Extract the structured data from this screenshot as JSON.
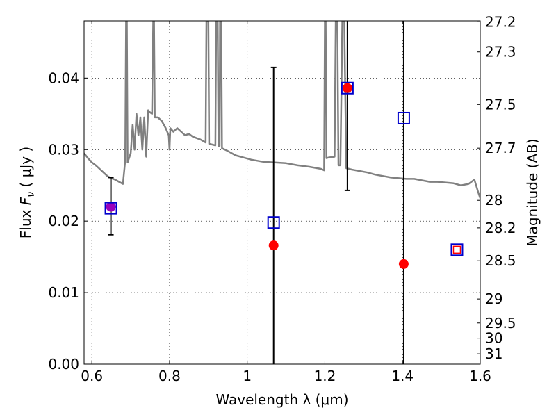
{
  "chart_data": {
    "type": "scatter",
    "xlabel": "Wavelength  λ (μm)",
    "ylabel": "Flux  F_ν  ( μJy )",
    "ylabel_parts": {
      "pre": "Flux  ",
      "var": "F",
      "sub": "ν",
      "post": "  ( μJy )"
    },
    "y2label": "Magnitude (AB)",
    "xlim": [
      0.58,
      1.6
    ],
    "ylim": [
      0.0,
      0.048
    ],
    "x_ticks": [
      {
        "value": 0.6,
        "label": "0.6"
      },
      {
        "value": 0.8,
        "label": "0.8"
      },
      {
        "value": 1.0,
        "label": "1"
      },
      {
        "value": 1.2,
        "label": "1.2"
      },
      {
        "value": 1.4,
        "label": "1.4"
      },
      {
        "value": 1.6,
        "label": "1.6"
      }
    ],
    "y_ticks": [
      {
        "value": 0.0,
        "label": "0.00"
      },
      {
        "value": 0.01,
        "label": "0.01"
      },
      {
        "value": 0.02,
        "label": "0.02"
      },
      {
        "value": 0.03,
        "label": "0.03"
      },
      {
        "value": 0.04,
        "label": "0.04"
      }
    ],
    "mag_ticks": [
      {
        "value": 27.2,
        "label": "27.2"
      },
      {
        "value": 27.3,
        "label": "27.3"
      },
      {
        "value": 27.5,
        "label": "27.5"
      },
      {
        "value": 27.7,
        "label": "27.7"
      },
      {
        "value": 28.0,
        "label": "28"
      },
      {
        "value": 28.2,
        "label": "28.2"
      },
      {
        "value": 28.5,
        "label": "28.5"
      },
      {
        "value": 29.0,
        "label": "29"
      },
      {
        "value": 29.5,
        "label": "29.5"
      },
      {
        "value": 30.0,
        "label": "30"
      },
      {
        "value": 31.0,
        "label": "31"
      }
    ],
    "grid": true,
    "colors": {
      "model": "#808080",
      "observed": "#ff0000",
      "model_phot": "#0000cc",
      "errorbar": "#000000",
      "blend": "#9900bb",
      "grid": "#000000"
    },
    "observed": [
      {
        "x": 0.649,
        "y": 0.022,
        "yerr_low": 0.0181,
        "yerr_high": 0.0261
      },
      {
        "x": 1.068,
        "y": 0.0166,
        "yerr_low": 0.0,
        "yerr_high": 0.0415
      },
      {
        "x": 1.258,
        "y": 0.0386,
        "yerr_low": 0.0243,
        "yerr_high": 0.048
      },
      {
        "x": 1.403,
        "y": 0.014,
        "yerr_low": 0.0,
        "yerr_high": 0.048
      }
    ],
    "model_photometry": [
      {
        "x": 0.649,
        "y": 0.0218
      },
      {
        "x": 1.068,
        "y": 0.0198
      },
      {
        "x": 1.258,
        "y": 0.0386
      },
      {
        "x": 1.403,
        "y": 0.0344
      },
      {
        "x": 1.54,
        "y": 0.016
      }
    ],
    "spectrum": [
      [
        0.58,
        0.0295
      ],
      [
        0.59,
        0.0288
      ],
      [
        0.6,
        0.0282
      ],
      [
        0.61,
        0.0278
      ],
      [
        0.62,
        0.0273
      ],
      [
        0.63,
        0.0268
      ],
      [
        0.64,
        0.0263
      ],
      [
        0.65,
        0.026
      ],
      [
        0.66,
        0.0258
      ],
      [
        0.67,
        0.0255
      ],
      [
        0.68,
        0.0252
      ],
      [
        0.686,
        0.0285
      ],
      [
        0.688,
        0.048
      ],
      [
        0.69,
        0.048
      ],
      [
        0.692,
        0.0282
      ],
      [
        0.7,
        0.0295
      ],
      [
        0.705,
        0.0335
      ],
      [
        0.71,
        0.03
      ],
      [
        0.715,
        0.035
      ],
      [
        0.72,
        0.032
      ],
      [
        0.725,
        0.0345
      ],
      [
        0.73,
        0.03
      ],
      [
        0.735,
        0.0345
      ],
      [
        0.74,
        0.029
      ],
      [
        0.745,
        0.0355
      ],
      [
        0.75,
        0.0352
      ],
      [
        0.755,
        0.035
      ],
      [
        0.758,
        0.048
      ],
      [
        0.76,
        0.048
      ],
      [
        0.762,
        0.0345
      ],
      [
        0.77,
        0.0345
      ],
      [
        0.78,
        0.034
      ],
      [
        0.79,
        0.033
      ],
      [
        0.798,
        0.032
      ],
      [
        0.8,
        0.03
      ],
      [
        0.802,
        0.033
      ],
      [
        0.81,
        0.0325
      ],
      [
        0.82,
        0.033
      ],
      [
        0.83,
        0.0325
      ],
      [
        0.84,
        0.032
      ],
      [
        0.85,
        0.0322
      ],
      [
        0.86,
        0.0318
      ],
      [
        0.87,
        0.0316
      ],
      [
        0.88,
        0.0314
      ],
      [
        0.893,
        0.031
      ],
      [
        0.895,
        0.048
      ],
      [
        0.9,
        0.048
      ],
      [
        0.902,
        0.0308
      ],
      [
        0.91,
        0.0307
      ],
      [
        0.918,
        0.0306
      ],
      [
        0.92,
        0.048
      ],
      [
        0.924,
        0.048
      ],
      [
        0.926,
        0.0305
      ],
      [
        0.929,
        0.0305
      ],
      [
        0.93,
        0.048
      ],
      [
        0.933,
        0.048
      ],
      [
        0.935,
        0.0302
      ],
      [
        0.95,
        0.0298
      ],
      [
        0.97,
        0.0292
      ],
      [
        0.99,
        0.0289
      ],
      [
        1.01,
        0.0286
      ],
      [
        1.04,
        0.0283
      ],
      [
        1.07,
        0.0282
      ],
      [
        1.1,
        0.0281
      ],
      [
        1.13,
        0.0278
      ],
      [
        1.16,
        0.0276
      ],
      [
        1.19,
        0.0273
      ],
      [
        1.198,
        0.0271
      ],
      [
        1.2,
        0.048
      ],
      [
        1.202,
        0.048
      ],
      [
        1.204,
        0.0288
      ],
      [
        1.21,
        0.0289
      ],
      [
        1.225,
        0.029
      ],
      [
        1.228,
        0.048
      ],
      [
        1.232,
        0.048
      ],
      [
        1.235,
        0.0278
      ],
      [
        1.24,
        0.0278
      ],
      [
        1.245,
        0.048
      ],
      [
        1.25,
        0.048
      ],
      [
        1.255,
        0.0274
      ],
      [
        1.27,
        0.0272
      ],
      [
        1.29,
        0.027
      ],
      [
        1.31,
        0.0268
      ],
      [
        1.33,
        0.0265
      ],
      [
        1.35,
        0.0263
      ],
      [
        1.37,
        0.0261
      ],
      [
        1.39,
        0.026
      ],
      [
        1.41,
        0.0259
      ],
      [
        1.43,
        0.0259
      ],
      [
        1.45,
        0.0257
      ],
      [
        1.47,
        0.0255
      ],
      [
        1.49,
        0.0255
      ],
      [
        1.51,
        0.0254
      ],
      [
        1.53,
        0.0253
      ],
      [
        1.55,
        0.025
      ],
      [
        1.57,
        0.0252
      ],
      [
        1.585,
        0.0258
      ],
      [
        1.595,
        0.024
      ],
      [
        1.6,
        0.0232
      ]
    ]
  }
}
